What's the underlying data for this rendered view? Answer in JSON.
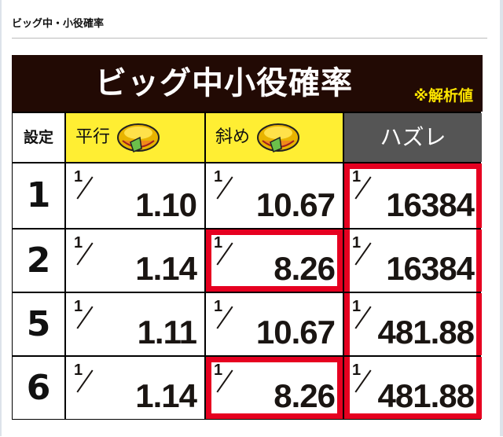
{
  "page": {
    "heading": "ビッグ中・小役確率"
  },
  "table": {
    "title": "ビッグ中小役確率",
    "note": "※解析値",
    "headers": {
      "setting": "設定",
      "parallel": "平行",
      "diagonal": "斜め",
      "miss": "ハズレ"
    },
    "header_icons": [
      "bell-coin-icon",
      "bell-coin-icon"
    ],
    "rows": [
      {
        "setting": "1",
        "parallel": "1.10",
        "diagonal": "10.67",
        "miss": "16384"
      },
      {
        "setting": "2",
        "parallel": "1.14",
        "diagonal": "8.26",
        "miss": "16384"
      },
      {
        "setting": "5",
        "parallel": "1.11",
        "diagonal": "10.67",
        "miss": "481.88"
      },
      {
        "setting": "6",
        "parallel": "1.14",
        "diagonal": "8.26",
        "miss": "481.88"
      }
    ],
    "numerator": "1",
    "highlight_color": "#e60020",
    "highlighted": [
      "miss column (all rows)",
      "diagonal setting 2",
      "diagonal setting 6"
    ]
  }
}
